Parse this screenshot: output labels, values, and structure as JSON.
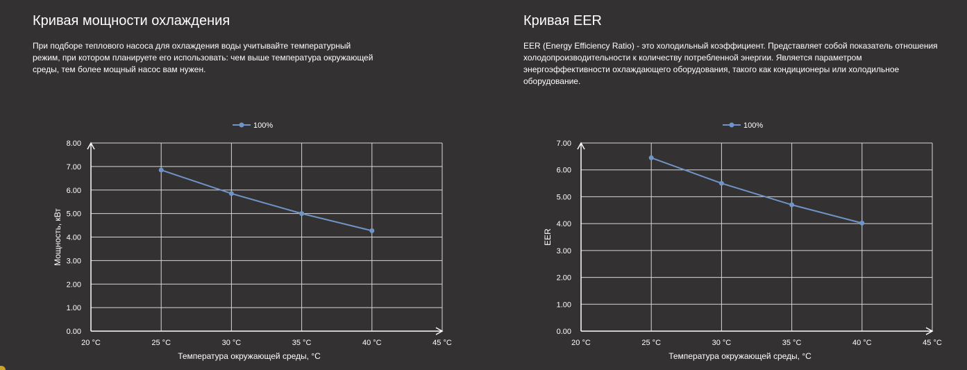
{
  "left": {
    "title": "Кривая мощности охлаждения",
    "description": "При подборе теплового насоса для охлаждения воды учитывайте температурный режим, при котором планируете его использовать: чем выше температура окружающей среды, тем более мощный насос вам нужен."
  },
  "right": {
    "title": "Кривая EER",
    "description": "EER (Energy Efficiency Ratio) - это холодильный коэффициент. Представляет собой показатель отношения холодопроизводительности к количеству потребленной энергии. Является параметром энергоэффективности охлаждающего оборудования, такого как кондиционеры или холодильное оборудование."
  },
  "chart_data": [
    {
      "type": "line",
      "title": "",
      "xlabel": "Температура окружающей среды, °C",
      "ylabel": "Мощность, кВт",
      "x_categories": [
        "20 °C",
        "25 °C",
        "30 °C",
        "35 °C",
        "40 °C",
        "45 °C"
      ],
      "xlim": [
        20,
        45
      ],
      "ylim": [
        0,
        8
      ],
      "y_ticks": [
        "0.00",
        "1.00",
        "2.00",
        "3.00",
        "4.00",
        "5.00",
        "6.00",
        "7.00",
        "8.00"
      ],
      "grid": true,
      "legend_position": "top-center",
      "series": [
        {
          "name": "100%",
          "color": "#6f95c8",
          "x": [
            25,
            30,
            35,
            40
          ],
          "y": [
            6.85,
            5.85,
            5.0,
            4.27
          ]
        }
      ]
    },
    {
      "type": "line",
      "title": "",
      "xlabel": "Температура окружающей среды, °C",
      "ylabel": "EER",
      "x_categories": [
        "20 °C",
        "25 °C",
        "30 °C",
        "35 °C",
        "40 °C",
        "45 °C"
      ],
      "xlim": [
        20,
        45
      ],
      "ylim": [
        0,
        7
      ],
      "y_ticks": [
        "0.00",
        "1.00",
        "2.00",
        "3.00",
        "4.00",
        "5.00",
        "6.00",
        "7.00"
      ],
      "grid": true,
      "legend_position": "top-center",
      "series": [
        {
          "name": "100%",
          "color": "#6f95c8",
          "x": [
            25,
            30,
            35,
            40
          ],
          "y": [
            6.45,
            5.5,
            4.7,
            4.02
          ]
        }
      ]
    }
  ],
  "colors": {
    "background": "#333132",
    "grid": "#d8d8d8",
    "series": "#6f95c8",
    "accent": "#c9a227"
  }
}
